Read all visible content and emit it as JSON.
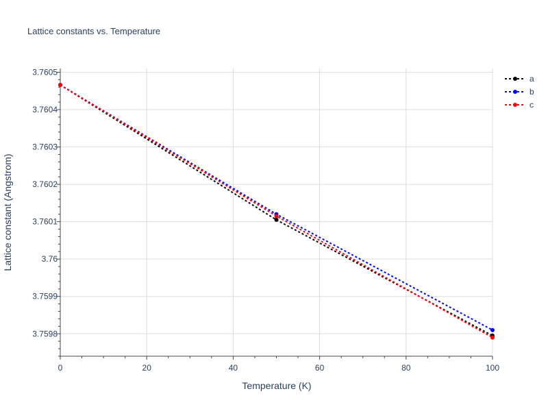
{
  "chart_data": {
    "type": "line",
    "title": "Lattice constants vs. Temperature",
    "xlabel": "Temperature (K)",
    "ylabel": "Lattice constant (Angstrom)",
    "x": [
      0,
      50,
      100
    ],
    "xlim": [
      0,
      100
    ],
    "ylim": [
      3.75974,
      3.76051
    ],
    "x_ticks": [
      0,
      20,
      40,
      60,
      80,
      100
    ],
    "x_tick_labels": [
      "0",
      "20",
      "40",
      "60",
      "80",
      "100"
    ],
    "y_ticks": [
      3.7598,
      3.7599,
      3.76,
      3.7601,
      3.7602,
      3.7603,
      3.7604,
      3.7605
    ],
    "y_tick_labels": [
      "3.7598",
      "3.7599",
      "3.76",
      "3.7601",
      "3.7602",
      "3.7603",
      "3.7604",
      "3.7605"
    ],
    "grid": true,
    "legend_position": "top-right",
    "series": [
      {
        "name": "a",
        "color": "#000000",
        "line_style": "dotted",
        "values": [
          3.760466,
          3.760105,
          3.759795
        ]
      },
      {
        "name": "b",
        "color": "#0000ff",
        "line_style": "dotted",
        "values": [
          3.760466,
          3.76012,
          3.75981
        ]
      },
      {
        "name": "c",
        "color": "#ff0000",
        "line_style": "dotted",
        "values": [
          3.760466,
          3.760115,
          3.75979
        ]
      }
    ]
  }
}
